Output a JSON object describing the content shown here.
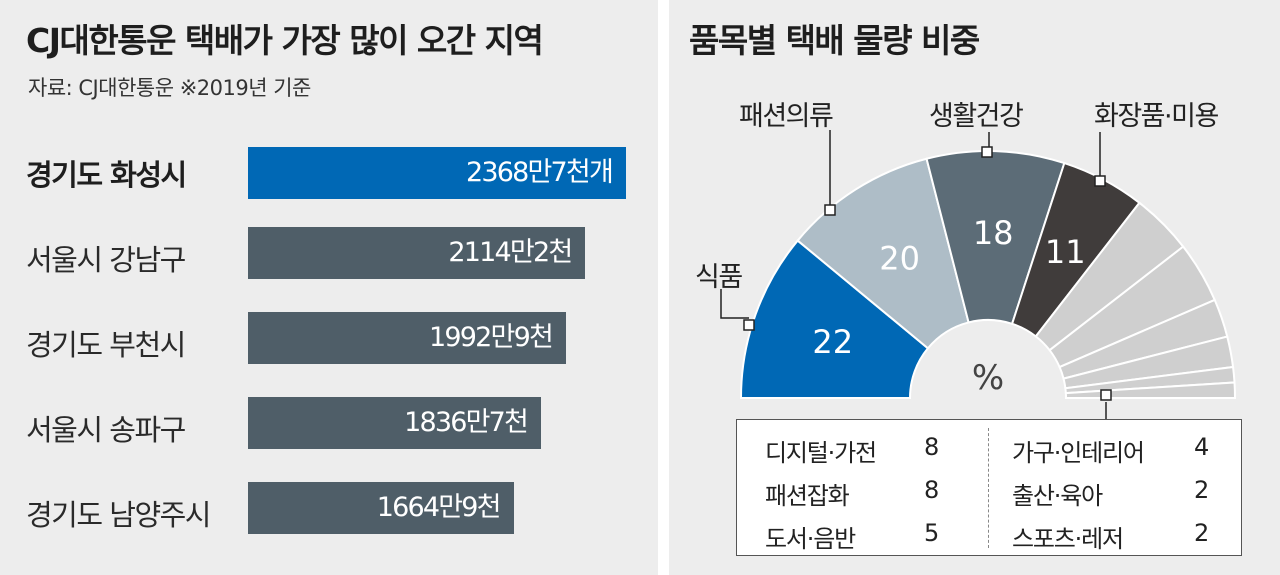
{
  "chart_data": [
    {
      "type": "bar",
      "orientation": "horizontal",
      "title": "CJ대한통운 택배가 가장 많이 오간 지역",
      "source": "자료: CJ대한통운 ※2019년 기준",
      "categories": [
        "경기도 화성시",
        "서울시 강남구",
        "경기도 부천시",
        "서울시 송파구",
        "경기도 남양주시"
      ],
      "values": [
        23687000,
        21142000,
        19929000,
        18367000,
        16649000
      ],
      "value_labels": [
        "2368만7천개",
        "2114만2천",
        "1992만9천",
        "1836만7천",
        "1664만9천"
      ],
      "highlight_index": 0,
      "colors": {
        "highlight": "#0068b5",
        "default": "#4f5e68"
      }
    },
    {
      "type": "pie",
      "shape": "half-donut",
      "title": "품목별 택배 물량 비중",
      "unit_label": "%",
      "slices": [
        {
          "name": "식품",
          "value": 22,
          "color": "#0068b5",
          "label_color": "#ffffff"
        },
        {
          "name": "패션의류",
          "value": 20,
          "color": "#aebdc7",
          "label_color": "#ffffff"
        },
        {
          "name": "생활건강",
          "value": 18,
          "color": "#5c6c77",
          "label_color": "#ffffff"
        },
        {
          "name": "화장품·미용",
          "value": 11,
          "color": "#403c3b",
          "label_color": "#ffffff"
        },
        {
          "name": "디지털·가전",
          "value": 8,
          "color": "#cfcfcf"
        },
        {
          "name": "패션잡화",
          "value": 8,
          "color": "#cfcfcf"
        },
        {
          "name": "도서·음반",
          "value": 5,
          "color": "#cfcfcf"
        },
        {
          "name": "가구·인테리어",
          "value": 4,
          "color": "#cfcfcf"
        },
        {
          "name": "출산·육아",
          "value": 2,
          "color": "#cfcfcf"
        },
        {
          "name": "스포츠·레저",
          "value": 2,
          "color": "#cfcfcf"
        }
      ],
      "legend": {
        "left": [
          {
            "name": "디지털·가전",
            "value": "8"
          },
          {
            "name": "패션잡화",
            "value": "8"
          },
          {
            "name": "도서·음반",
            "value": "5"
          }
        ],
        "right": [
          {
            "name": "가구·인테리어",
            "value": "4"
          },
          {
            "name": "출산·육아",
            "value": "2"
          },
          {
            "name": "스포츠·레저",
            "value": "2"
          }
        ]
      }
    }
  ]
}
